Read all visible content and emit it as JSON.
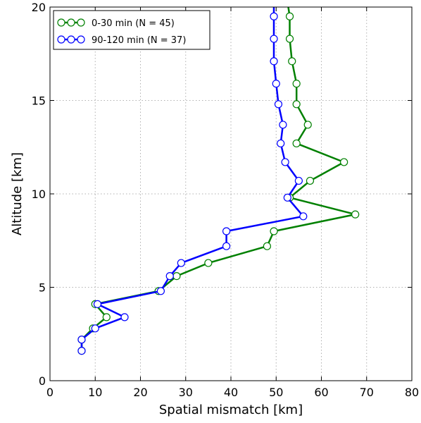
{
  "chart_data": {
    "type": "line",
    "xlabel": "Spatial mismatch [km]",
    "ylabel": "Altitude [km]",
    "xlim": [
      0,
      80
    ],
    "ylim": [
      0,
      20
    ],
    "xticks": [
      0,
      10,
      20,
      30,
      40,
      50,
      60,
      70,
      80
    ],
    "yticks": [
      0,
      5,
      10,
      15,
      20
    ],
    "grid": true,
    "legend": "top-left",
    "series": [
      {
        "name": "0-30 min (N = 45)",
        "color": "#008000",
        "marker": "open-circle",
        "points": [
          {
            "x": 7,
            "y": 1.6
          },
          {
            "x": 7,
            "y": 2.2
          },
          {
            "x": 9.5,
            "y": 2.8
          },
          {
            "x": 12.5,
            "y": 3.4
          },
          {
            "x": 10,
            "y": 4.1
          },
          {
            "x": 24,
            "y": 4.8
          },
          {
            "x": 28,
            "y": 5.6
          },
          {
            "x": 35,
            "y": 6.3
          },
          {
            "x": 48,
            "y": 7.2
          },
          {
            "x": 49.5,
            "y": 8.0
          },
          {
            "x": 67.5,
            "y": 8.9
          },
          {
            "x": 53,
            "y": 9.8
          },
          {
            "x": 57.5,
            "y": 10.7
          },
          {
            "x": 65,
            "y": 11.7
          },
          {
            "x": 54.5,
            "y": 12.7
          },
          {
            "x": 57,
            "y": 13.7
          },
          {
            "x": 54.5,
            "y": 14.8
          },
          {
            "x": 54.5,
            "y": 15.9
          },
          {
            "x": 53.5,
            "y": 17.1
          },
          {
            "x": 53,
            "y": 18.3
          },
          {
            "x": 53,
            "y": 19.5
          },
          {
            "x": 52.5,
            "y": 20.3
          }
        ]
      },
      {
        "name": "90-120 min (N = 37)",
        "color": "#0000ff",
        "marker": "open-circle",
        "points": [
          {
            "x": 7,
            "y": 1.6
          },
          {
            "x": 7,
            "y": 2.2
          },
          {
            "x": 10,
            "y": 2.8
          },
          {
            "x": 16.5,
            "y": 3.4
          },
          {
            "x": 10.5,
            "y": 4.1
          },
          {
            "x": 24.5,
            "y": 4.8
          },
          {
            "x": 26.5,
            "y": 5.6
          },
          {
            "x": 29,
            "y": 6.3
          },
          {
            "x": 39,
            "y": 7.2
          },
          {
            "x": 39,
            "y": 8.0
          },
          {
            "x": 56,
            "y": 8.8
          },
          {
            "x": 52.5,
            "y": 9.8
          },
          {
            "x": 55,
            "y": 10.7
          },
          {
            "x": 52,
            "y": 11.7
          },
          {
            "x": 51,
            "y": 12.7
          },
          {
            "x": 51.5,
            "y": 13.7
          },
          {
            "x": 50.5,
            "y": 14.8
          },
          {
            "x": 50,
            "y": 15.9
          },
          {
            "x": 49.5,
            "y": 17.1
          },
          {
            "x": 49.5,
            "y": 18.3
          },
          {
            "x": 49.5,
            "y": 19.5
          },
          {
            "x": 49.5,
            "y": 20.3
          }
        ]
      }
    ]
  }
}
